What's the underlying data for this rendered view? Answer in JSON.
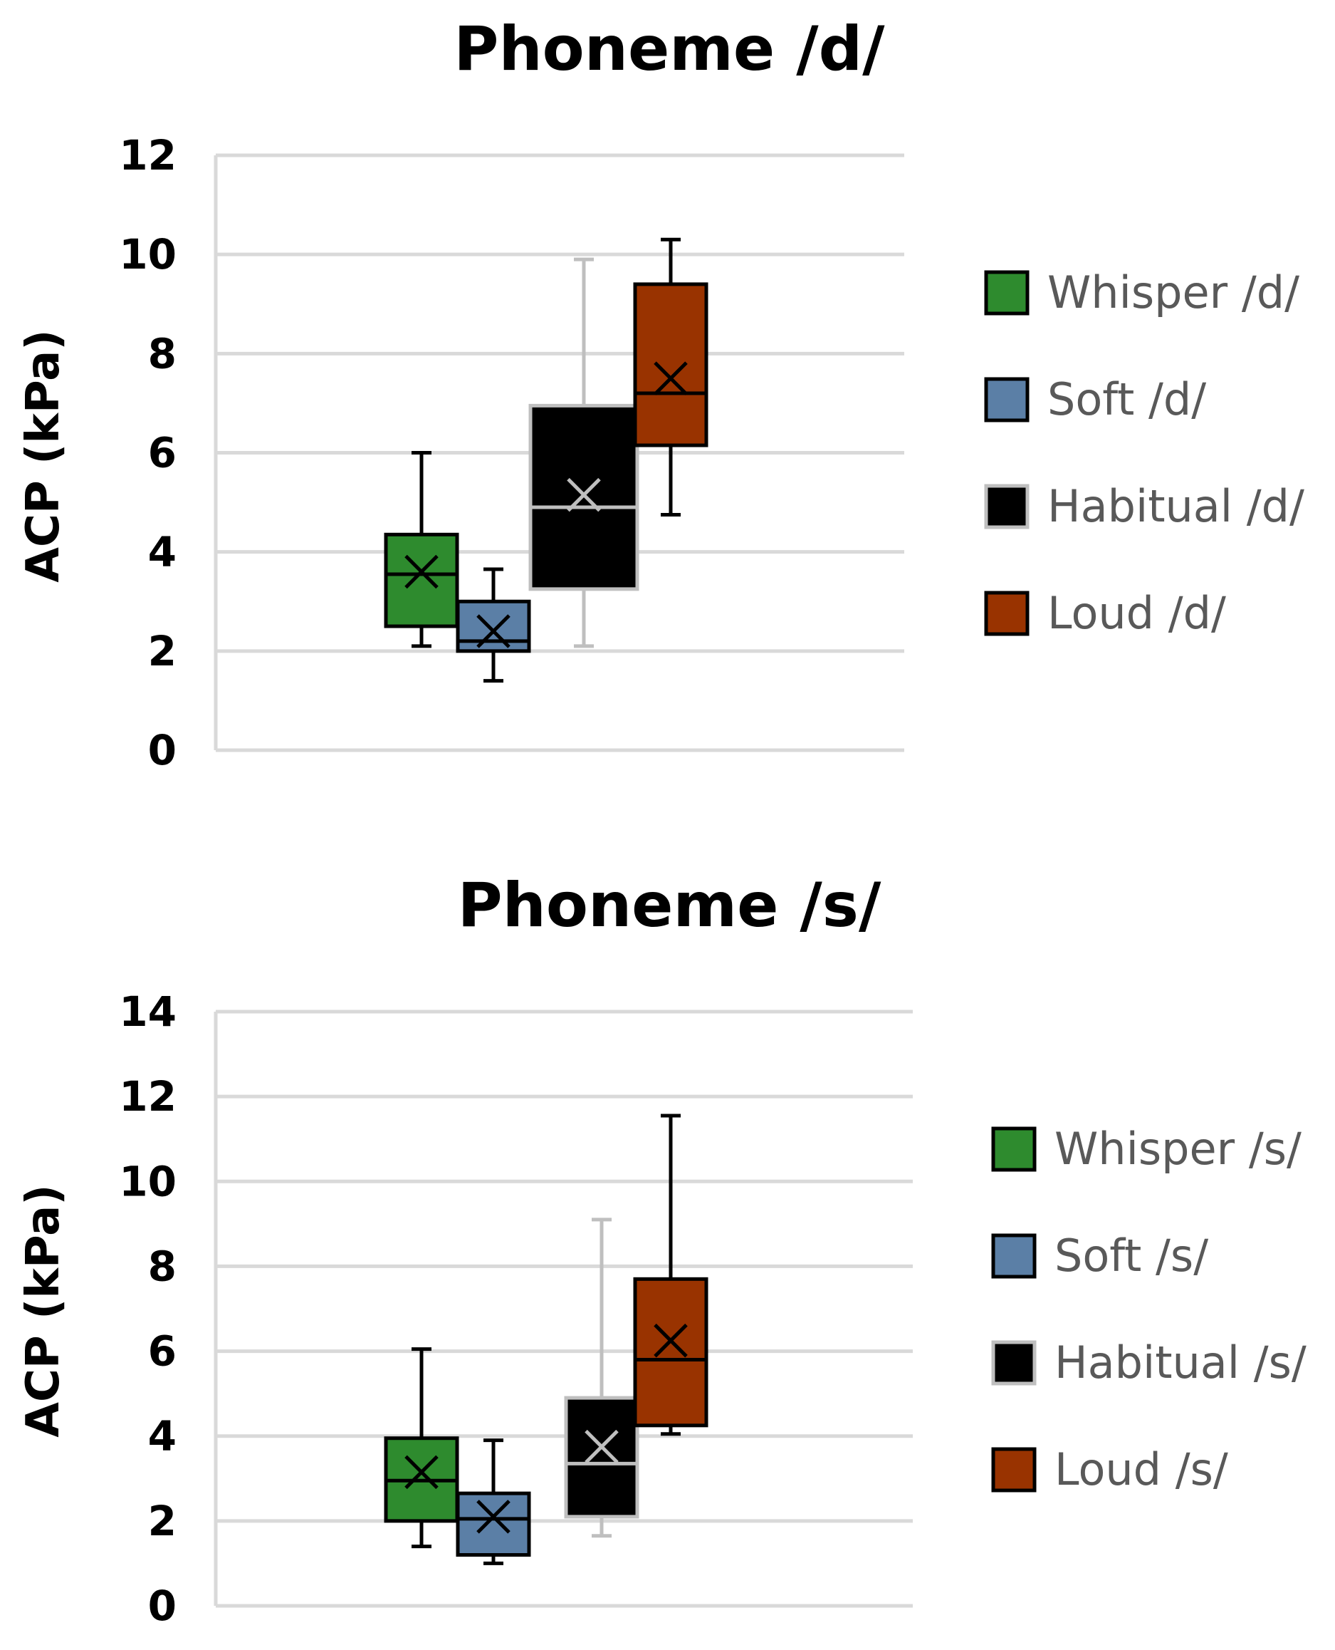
{
  "chart_data": [
    {
      "type": "boxplot",
      "title": "Phoneme /d/",
      "ylabel": "ACP (kPa)",
      "xlabel": "",
      "ylim": [
        0,
        12
      ],
      "yticks": [
        0,
        2,
        4,
        6,
        8,
        10,
        12
      ],
      "grid": true,
      "legend_position": "right",
      "series": [
        {
          "name": "Whisper /d/",
          "color": "#2e8b2e",
          "outline": "#000000",
          "whisker_color": "#000000",
          "mean_color": "#000000",
          "min": 2.1,
          "q1": 2.5,
          "median": 3.55,
          "q3": 4.35,
          "max": 6.0,
          "mean": 3.6
        },
        {
          "name": "Soft /d/",
          "color": "#5b7fa6",
          "outline": "#000000",
          "whisker_color": "#000000",
          "mean_color": "#000000",
          "min": 1.4,
          "q1": 2.0,
          "median": 2.2,
          "q3": 3.0,
          "max": 3.65,
          "mean": 2.4
        },
        {
          "name": "Habitual /d/",
          "color": "#000000",
          "outline": "#bfbfbf",
          "whisker_color": "#bfbfbf",
          "mean_color": "#bfbfbf",
          "min": 2.1,
          "q1": 3.25,
          "median": 4.9,
          "q3": 6.95,
          "max": 9.9,
          "mean": 5.15
        },
        {
          "name": "Loud /d/",
          "color": "#993300",
          "outline": "#000000",
          "whisker_color": "#000000",
          "mean_color": "#000000",
          "min": 4.75,
          "q1": 6.15,
          "median": 7.2,
          "q3": 9.4,
          "max": 10.3,
          "mean": 7.5
        }
      ]
    },
    {
      "type": "boxplot",
      "title": "Phoneme /s/",
      "ylabel": "ACP (kPa)",
      "xlabel": "",
      "ylim": [
        0,
        14
      ],
      "yticks": [
        0,
        2,
        4,
        6,
        8,
        10,
        12,
        14
      ],
      "grid": true,
      "legend_position": "right",
      "series": [
        {
          "name": "Whisper /s/",
          "color": "#2e8b2e",
          "outline": "#000000",
          "whisker_color": "#000000",
          "mean_color": "#000000",
          "min": 1.4,
          "q1": 2.0,
          "median": 2.95,
          "q3": 3.95,
          "max": 6.05,
          "mean": 3.15
        },
        {
          "name": "Soft /s/",
          "color": "#5b7fa6",
          "outline": "#000000",
          "whisker_color": "#000000",
          "mean_color": "#000000",
          "min": 1.0,
          "q1": 1.2,
          "median": 2.05,
          "q3": 2.65,
          "max": 3.9,
          "mean": 2.1
        },
        {
          "name": "Habitual /s/",
          "color": "#000000",
          "outline": "#bfbfbf",
          "whisker_color": "#bfbfbf",
          "mean_color": "#bfbfbf",
          "min": 1.65,
          "q1": 2.1,
          "median": 3.35,
          "q3": 4.9,
          "max": 9.1,
          "mean": 3.75
        },
        {
          "name": "Loud /s/",
          "color": "#993300",
          "outline": "#000000",
          "whisker_color": "#000000",
          "mean_color": "#000000",
          "min": 4.05,
          "q1": 4.25,
          "median": 5.8,
          "q3": 7.7,
          "max": 11.55,
          "mean": 6.25
        }
      ]
    }
  ]
}
